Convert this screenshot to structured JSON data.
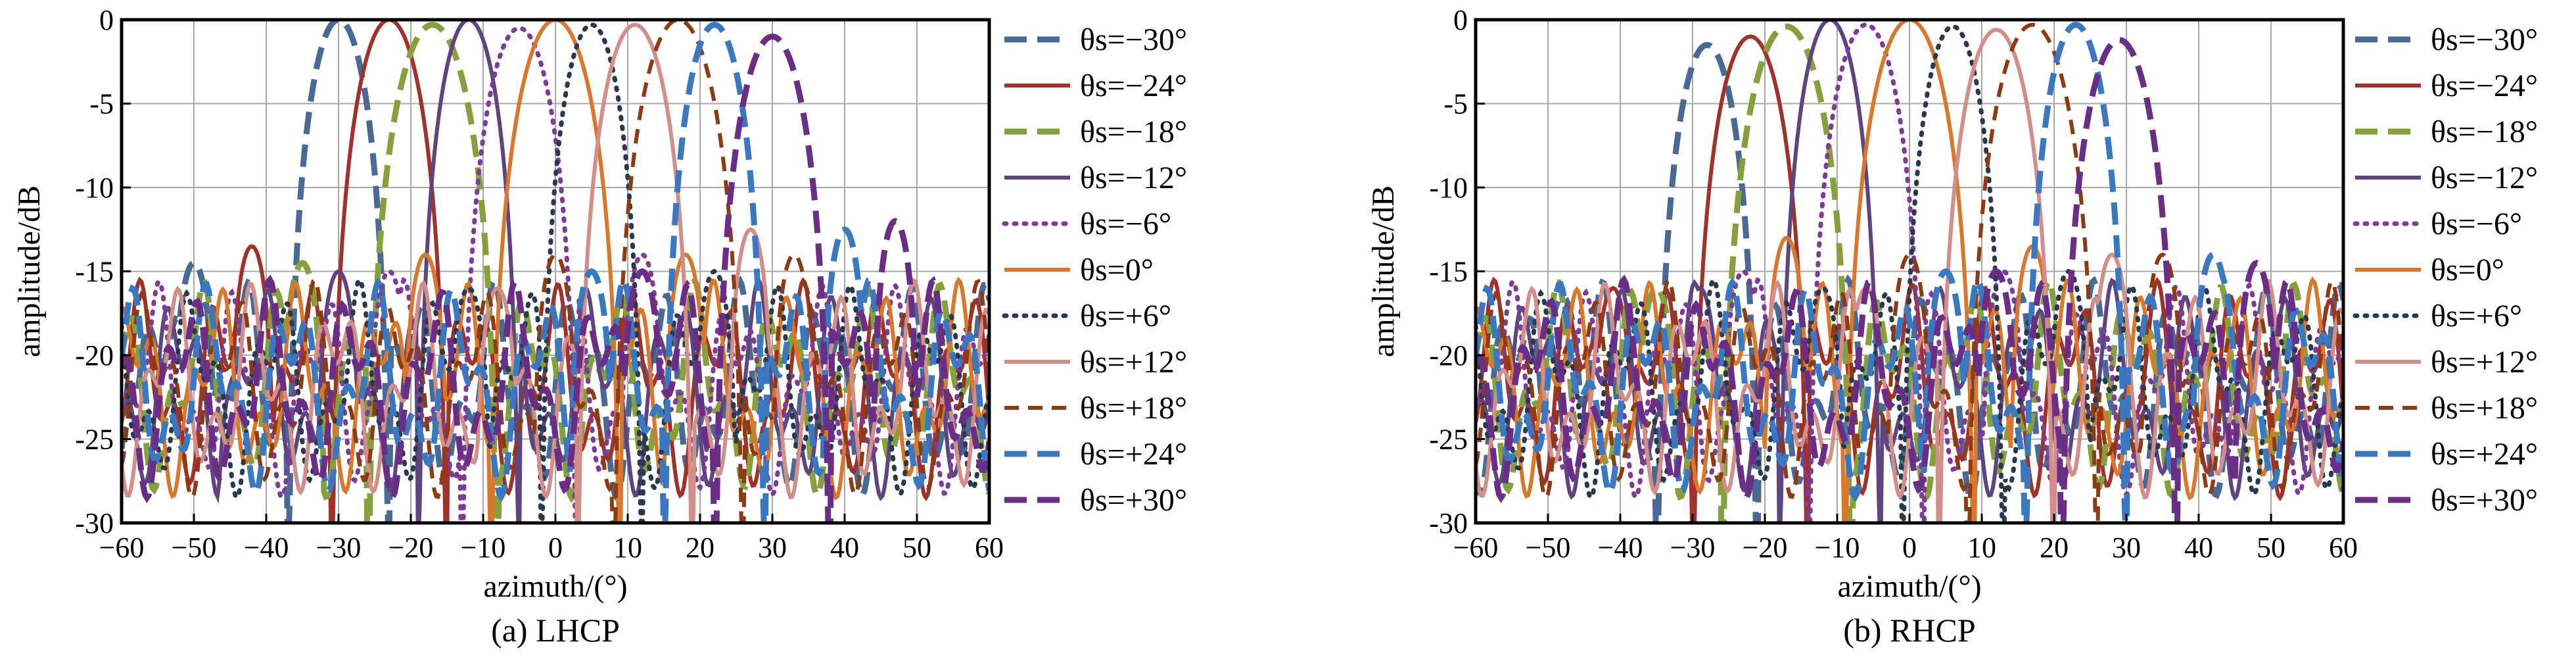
{
  "colors": {
    "theta_m30": "#4a6a96",
    "theta_m24": "#a0322b",
    "theta_m18": "#86a03e",
    "theta_m12": "#5f4580",
    "theta_m6": "#7e3c98",
    "theta_0": "#d9782c",
    "theta_p6": "#2a3a4e",
    "theta_p12": "#d38e8a",
    "theta_p18": "#8c3b14",
    "theta_p24": "#3a79c2",
    "theta_p30": "#6a2e86"
  },
  "chart_data": [
    {
      "type": "line",
      "caption": "(a) LHCP",
      "xlabel": "azimuth/(°)",
      "ylabel": "amplitude/dB",
      "xlim": [
        -60,
        60
      ],
      "ylim": [
        -30,
        0
      ],
      "xticks": [
        "−60",
        "−50",
        "−40",
        "−30",
        "−20",
        "−10",
        "0",
        "10",
        "20",
        "30",
        "40",
        "50",
        "60"
      ],
      "yticks": [
        "0",
        "-5",
        "-10",
        "-15",
        "-20",
        "-25",
        "-30"
      ],
      "grid": true,
      "legend_position": "right",
      "series": [
        {
          "name": "θs=−30°",
          "peak_x": -30,
          "peak_y": 0,
          "sidelobe": [
            [
              -50,
              -14.5
            ],
            [
              -58,
              -22
            ]
          ],
          "style": "longdash",
          "color_key": "theta_m30"
        },
        {
          "name": "θs=−24°",
          "peak_x": -23,
          "peak_y": 0,
          "sidelobe": [
            [
              -42,
              -13.5
            ],
            [
              -55,
              -24
            ]
          ],
          "style": "solid",
          "color_key": "theta_m24"
        },
        {
          "name": "θs=−18°",
          "peak_x": -17,
          "peak_y": -0.3,
          "sidelobe": [
            [
              -35,
              -14.5
            ],
            [
              -48,
              -22
            ]
          ],
          "style": "longdash",
          "color_key": "theta_m18"
        },
        {
          "name": "θs=−12°",
          "peak_x": -12,
          "peak_y": 0,
          "sidelobe": [
            [
              -30,
              -15
            ],
            [
              -44,
              -21
            ]
          ],
          "style": "solid",
          "color_key": "theta_m12"
        },
        {
          "name": "θs=−6°",
          "peak_x": -5,
          "peak_y": -0.5,
          "sidelobe": [
            [
              -23,
              -15
            ],
            [
              12,
              -14
            ]
          ],
          "style": "dotted",
          "color_key": "theta_m6"
        },
        {
          "name": "θs=0°",
          "peak_x": 0,
          "peak_y": 0,
          "sidelobe": [
            [
              -18,
              -14
            ],
            [
              18,
              -14
            ]
          ],
          "style": "solid",
          "color_key": "theta_0"
        },
        {
          "name": "θs=+6°",
          "peak_x": 5,
          "peak_y": -0.3,
          "sidelobe": [
            [
              -12,
              -16
            ],
            [
              22,
              -15
            ]
          ],
          "style": "dotted",
          "color_key": "theta_p6"
        },
        {
          "name": "θs=+12°",
          "peak_x": 11,
          "peak_y": -0.3,
          "sidelobe": [
            [
              -8,
              -16
            ],
            [
              27,
              -12.5
            ]
          ],
          "style": "solid",
          "color_key": "theta_p12"
        },
        {
          "name": "θs=+18°",
          "peak_x": 17,
          "peak_y": 0,
          "sidelobe": [
            [
              0,
              -14
            ],
            [
              33,
              -14
            ]
          ],
          "style": "dash",
          "color_key": "theta_p18"
        },
        {
          "name": "θs=+24°",
          "peak_x": 22,
          "peak_y": -0.3,
          "sidelobe": [
            [
              5,
              -15
            ],
            [
              40,
              -12.5
            ]
          ],
          "style": "longdash",
          "color_key": "theta_p24"
        },
        {
          "name": "θs=+30°",
          "peak_x": 30,
          "peak_y": -1.0,
          "sidelobe": [
            [
              12,
              -15
            ],
            [
              47,
              -12
            ]
          ],
          "style": "longdash",
          "color_key": "theta_p30"
        }
      ]
    },
    {
      "type": "line",
      "caption": "(b) RHCP",
      "xlabel": "azimuth/(°)",
      "ylabel": "amplitude/dB",
      "xlim": [
        -60,
        60
      ],
      "ylim": [
        -30,
        0
      ],
      "xticks": [
        "−60",
        "−50",
        "−40",
        "−30",
        "−20",
        "−10",
        "0",
        "10",
        "20",
        "30",
        "40",
        "50",
        "60"
      ],
      "yticks": [
        "0",
        "-5",
        "-10",
        "-15",
        "-20",
        "-25",
        "-30"
      ],
      "grid": true,
      "legend_position": "right",
      "series": [
        {
          "name": "θs=−30°",
          "peak_x": -28,
          "peak_y": -1.5,
          "sidelobe": [
            [
              -48,
              -16.5
            ],
            [
              -57,
              -26
            ]
          ],
          "style": "longdash",
          "color_key": "theta_m30"
        },
        {
          "name": "θs=−24°",
          "peak_x": -22,
          "peak_y": -1.0,
          "sidelobe": [
            [
              -41,
              -16
            ],
            [
              -57,
              -21.5
            ]
          ],
          "style": "solid",
          "color_key": "theta_m24"
        },
        {
          "name": "θs=−18°",
          "peak_x": -17,
          "peak_y": -0.4,
          "sidelobe": [
            [
              -35,
              -16
            ],
            [
              -48,
              -23
            ]
          ],
          "style": "longdash",
          "color_key": "theta_m18"
        },
        {
          "name": "θs=−12°",
          "peak_x": -11,
          "peak_y": 0,
          "sidelobe": [
            [
              -29,
              -16
            ],
            [
              -40,
              -19
            ]
          ],
          "style": "solid",
          "color_key": "theta_m12"
        },
        {
          "name": "θs=−6°",
          "peak_x": -6,
          "peak_y": -0.3,
          "sidelobe": [
            [
              -23,
              -15
            ],
            [
              13,
              -15
            ]
          ],
          "style": "dotted",
          "color_key": "theta_m6"
        },
        {
          "name": "θs=0°",
          "peak_x": 0,
          "peak_y": 0,
          "sidelobe": [
            [
              -17,
              -13
            ],
            [
              17,
              -13.5
            ]
          ],
          "style": "solid",
          "color_key": "theta_0"
        },
        {
          "name": "θs=+6°",
          "peak_x": 6,
          "peak_y": -0.4,
          "sidelobe": [
            [
              -12,
              -16
            ],
            [
              22,
              -15
            ]
          ],
          "style": "dotted",
          "color_key": "theta_p6"
        },
        {
          "name": "θs=+12°",
          "peak_x": 12,
          "peak_y": -0.6,
          "sidelobe": [
            [
              -6,
              -16
            ],
            [
              28,
              -14
            ]
          ],
          "style": "solid",
          "color_key": "theta_p12"
        },
        {
          "name": "θs=+18°",
          "peak_x": 17,
          "peak_y": -0.3,
          "sidelobe": [
            [
              0,
              -14
            ],
            [
              35,
              -14
            ]
          ],
          "style": "dash",
          "color_key": "theta_p18"
        },
        {
          "name": "θs=+24°",
          "peak_x": 23,
          "peak_y": -0.3,
          "sidelobe": [
            [
              5,
              -15
            ],
            [
              42,
              -14
            ]
          ],
          "style": "longdash",
          "color_key": "theta_p24"
        },
        {
          "name": "θs=+30°",
          "peak_x": 29,
          "peak_y": -1.2,
          "sidelobe": [
            [
              12,
              -15
            ],
            [
              48,
              -14.5
            ]
          ],
          "style": "longdash",
          "color_key": "theta_p30"
        }
      ]
    }
  ]
}
